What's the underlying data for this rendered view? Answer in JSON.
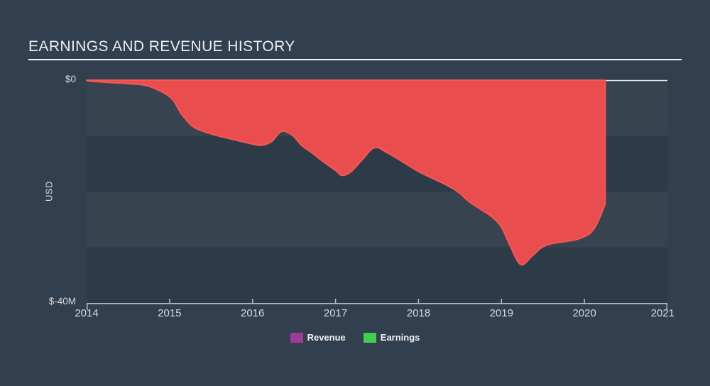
{
  "title": "EARNINGS AND REVENUE HISTORY",
  "y_axis": {
    "label": "USD",
    "top_tick": "$0",
    "bottom_tick": "$-40M"
  },
  "x_axis": {
    "ticks": [
      "2014",
      "2015",
      "2016",
      "2017",
      "2018",
      "2019",
      "2020",
      "2021"
    ]
  },
  "legend": [
    {
      "label": "Revenue",
      "color": "#a03a9a"
    },
    {
      "label": "Earnings",
      "color": "#41d04b"
    }
  ],
  "colors": {
    "background": "#323f4e",
    "band_light": "#37434f",
    "band_dark": "#2d3a48",
    "title_text": "#eceff1",
    "title_rule": "#f4f6f7",
    "zero_line": "#edf0f2",
    "axis_line": "#b6bec5",
    "axis_text": "#d6dadd",
    "area_fill": "#e94d4d",
    "area_stroke": "#f75755"
  },
  "chart_data": {
    "type": "area",
    "title": "EARNINGS AND REVENUE HISTORY",
    "xlabel": "",
    "ylabel": "USD",
    "x_range": [
      2014,
      2021
    ],
    "ylim": [
      0,
      -40
    ],
    "y_unit": "USD millions",
    "y_gridline_step_m": 10,
    "x_ticks": [
      2014,
      2015,
      2016,
      2017,
      2018,
      2019,
      2020,
      2021
    ],
    "grid": "alternating horizontal bands every 10M",
    "legend_position": "bottom-center",
    "legend_entries": [
      "Revenue",
      "Earnings"
    ],
    "series": [
      {
        "name": "earnings-loss-area",
        "description": "red area of negative earnings from 2014 to ~2020.25; revenue stays at ~$0",
        "color": "#e94d4d",
        "points": [
          [
            2014.0,
            -0.1
          ],
          [
            2014.24,
            -0.4
          ],
          [
            2014.5,
            -0.6
          ],
          [
            2014.75,
            -1.1
          ],
          [
            2015.01,
            -3.1
          ],
          [
            2015.14,
            -6.0
          ],
          [
            2015.27,
            -8.2
          ],
          [
            2015.41,
            -9.2
          ],
          [
            2015.61,
            -10.1
          ],
          [
            2015.78,
            -10.7
          ],
          [
            2016.01,
            -11.5
          ],
          [
            2016.11,
            -11.7
          ],
          [
            2016.23,
            -11.0
          ],
          [
            2016.35,
            -9.2
          ],
          [
            2016.48,
            -9.9
          ],
          [
            2016.59,
            -11.7
          ],
          [
            2016.72,
            -13.1
          ],
          [
            2016.85,
            -14.6
          ],
          [
            2017.0,
            -16.2
          ],
          [
            2017.08,
            -17.1
          ],
          [
            2017.19,
            -16.4
          ],
          [
            2017.32,
            -14.3
          ],
          [
            2017.47,
            -12.1
          ],
          [
            2017.62,
            -13.0
          ],
          [
            2017.79,
            -14.5
          ],
          [
            2018.0,
            -16.4
          ],
          [
            2018.18,
            -17.7
          ],
          [
            2018.32,
            -18.7
          ],
          [
            2018.48,
            -20.1
          ],
          [
            2018.6,
            -21.7
          ],
          [
            2018.75,
            -23.2
          ],
          [
            2018.89,
            -24.6
          ],
          [
            2019.0,
            -26.4
          ],
          [
            2019.1,
            -29.6
          ],
          [
            2019.23,
            -33.1
          ],
          [
            2019.36,
            -31.7
          ],
          [
            2019.48,
            -30.1
          ],
          [
            2019.59,
            -29.4
          ],
          [
            2019.8,
            -28.9
          ],
          [
            2019.93,
            -28.5
          ],
          [
            2020.06,
            -27.6
          ],
          [
            2020.14,
            -26.1
          ],
          [
            2020.2,
            -24.1
          ],
          [
            2020.25,
            -22.2
          ]
        ]
      }
    ]
  }
}
